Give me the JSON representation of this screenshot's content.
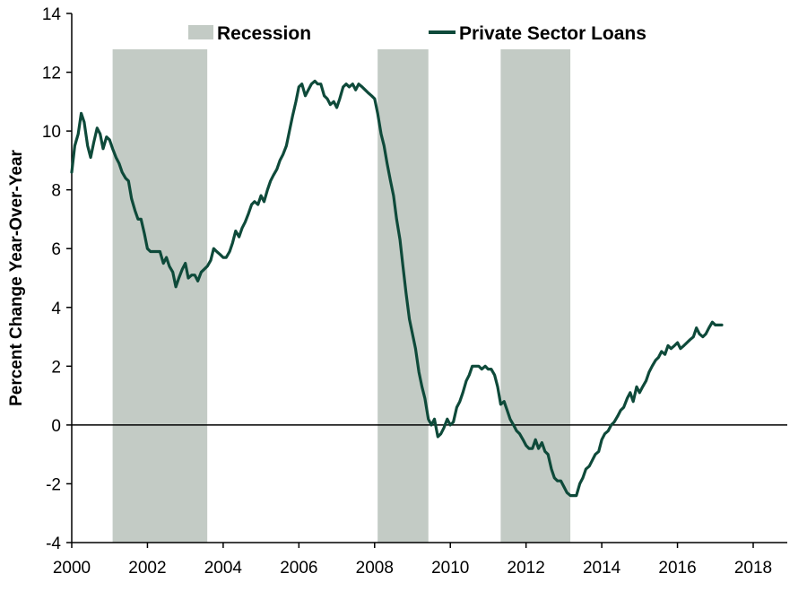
{
  "chart_data": {
    "type": "line",
    "title": "",
    "xlabel": "",
    "ylabel": "Percent Change Year-Over-Year",
    "xlim": [
      2000,
      2018.9
    ],
    "ylim": [
      -4,
      14
    ],
    "grid": false,
    "legend_position": "top",
    "x_ticks": [
      2000,
      2002,
      2004,
      2006,
      2008,
      2010,
      2012,
      2014,
      2016,
      2018
    ],
    "x_tick_labels": [
      "2000",
      "2002",
      "2004",
      "2006",
      "2008",
      "2010",
      "2012",
      "2014",
      "2016",
      "2018"
    ],
    "y_ticks": [
      -4,
      -2,
      0,
      2,
      4,
      6,
      8,
      10,
      12,
      14
    ],
    "y_tick_labels": [
      "-4",
      "-2",
      "0",
      "2",
      "4",
      "6",
      "8",
      "10",
      "12",
      "14"
    ],
    "legend": {
      "recession_label": "Recession",
      "series_label": "Private Sector Loans"
    },
    "colors": {
      "line": "#0e4a3a",
      "recession": "#c3cbc5",
      "axis": "#000000"
    },
    "recessions": [
      {
        "start": 2001.08,
        "end": 2003.58
      },
      {
        "start": 2008.08,
        "end": 2009.42
      },
      {
        "start": 2011.33,
        "end": 2013.17
      }
    ],
    "series": [
      {
        "name": "Private Sector Loans",
        "points": [
          [
            2000.0,
            8.6
          ],
          [
            2000.08,
            9.5
          ],
          [
            2000.17,
            9.9
          ],
          [
            2000.25,
            10.6
          ],
          [
            2000.33,
            10.3
          ],
          [
            2000.42,
            9.5
          ],
          [
            2000.5,
            9.1
          ],
          [
            2000.58,
            9.6
          ],
          [
            2000.67,
            10.1
          ],
          [
            2000.75,
            9.9
          ],
          [
            2000.83,
            9.4
          ],
          [
            2000.92,
            9.8
          ],
          [
            2001.0,
            9.7
          ],
          [
            2001.08,
            9.4
          ],
          [
            2001.17,
            9.1
          ],
          [
            2001.25,
            8.9
          ],
          [
            2001.33,
            8.6
          ],
          [
            2001.42,
            8.4
          ],
          [
            2001.5,
            8.3
          ],
          [
            2001.58,
            7.7
          ],
          [
            2001.67,
            7.3
          ],
          [
            2001.75,
            7.0
          ],
          [
            2001.83,
            7.0
          ],
          [
            2001.92,
            6.5
          ],
          [
            2002.0,
            6.0
          ],
          [
            2002.08,
            5.9
          ],
          [
            2002.17,
            5.9
          ],
          [
            2002.25,
            5.9
          ],
          [
            2002.33,
            5.9
          ],
          [
            2002.42,
            5.5
          ],
          [
            2002.5,
            5.7
          ],
          [
            2002.58,
            5.4
          ],
          [
            2002.67,
            5.2
          ],
          [
            2002.75,
            4.7
          ],
          [
            2002.83,
            5.0
          ],
          [
            2002.92,
            5.3
          ],
          [
            2003.0,
            5.5
          ],
          [
            2003.08,
            5.0
          ],
          [
            2003.17,
            5.1
          ],
          [
            2003.25,
            5.1
          ],
          [
            2003.33,
            4.9
          ],
          [
            2003.42,
            5.2
          ],
          [
            2003.5,
            5.3
          ],
          [
            2003.58,
            5.4
          ],
          [
            2003.67,
            5.6
          ],
          [
            2003.75,
            6.0
          ],
          [
            2003.83,
            5.9
          ],
          [
            2003.92,
            5.8
          ],
          [
            2004.0,
            5.7
          ],
          [
            2004.08,
            5.7
          ],
          [
            2004.17,
            5.9
          ],
          [
            2004.25,
            6.2
          ],
          [
            2004.33,
            6.6
          ],
          [
            2004.42,
            6.4
          ],
          [
            2004.5,
            6.7
          ],
          [
            2004.58,
            6.9
          ],
          [
            2004.67,
            7.2
          ],
          [
            2004.75,
            7.5
          ],
          [
            2004.83,
            7.6
          ],
          [
            2004.92,
            7.5
          ],
          [
            2005.0,
            7.8
          ],
          [
            2005.08,
            7.6
          ],
          [
            2005.17,
            8.0
          ],
          [
            2005.25,
            8.3
          ],
          [
            2005.33,
            8.5
          ],
          [
            2005.42,
            8.7
          ],
          [
            2005.5,
            9.0
          ],
          [
            2005.58,
            9.2
          ],
          [
            2005.67,
            9.5
          ],
          [
            2005.75,
            10.0
          ],
          [
            2005.83,
            10.5
          ],
          [
            2005.92,
            11.0
          ],
          [
            2006.0,
            11.5
          ],
          [
            2006.08,
            11.6
          ],
          [
            2006.17,
            11.2
          ],
          [
            2006.25,
            11.4
          ],
          [
            2006.33,
            11.6
          ],
          [
            2006.42,
            11.7
          ],
          [
            2006.5,
            11.6
          ],
          [
            2006.58,
            11.6
          ],
          [
            2006.67,
            11.2
          ],
          [
            2006.75,
            11.1
          ],
          [
            2006.83,
            10.9
          ],
          [
            2006.92,
            11.0
          ],
          [
            2007.0,
            10.8
          ],
          [
            2007.08,
            11.1
          ],
          [
            2007.17,
            11.5
          ],
          [
            2007.25,
            11.6
          ],
          [
            2007.33,
            11.5
          ],
          [
            2007.42,
            11.6
          ],
          [
            2007.5,
            11.4
          ],
          [
            2007.58,
            11.6
          ],
          [
            2007.67,
            11.5
          ],
          [
            2007.75,
            11.4
          ],
          [
            2007.83,
            11.3
          ],
          [
            2007.92,
            11.2
          ],
          [
            2008.0,
            11.1
          ],
          [
            2008.08,
            10.6
          ],
          [
            2008.17,
            9.9
          ],
          [
            2008.25,
            9.5
          ],
          [
            2008.33,
            8.9
          ],
          [
            2008.42,
            8.3
          ],
          [
            2008.5,
            7.8
          ],
          [
            2008.58,
            7.0
          ],
          [
            2008.67,
            6.3
          ],
          [
            2008.75,
            5.4
          ],
          [
            2008.83,
            4.5
          ],
          [
            2008.92,
            3.6
          ],
          [
            2009.0,
            3.1
          ],
          [
            2009.08,
            2.6
          ],
          [
            2009.17,
            1.8
          ],
          [
            2009.25,
            1.3
          ],
          [
            2009.33,
            0.9
          ],
          [
            2009.42,
            0.2
          ],
          [
            2009.5,
            0.0
          ],
          [
            2009.58,
            0.2
          ],
          [
            2009.67,
            -0.4
          ],
          [
            2009.75,
            -0.3
          ],
          [
            2009.83,
            -0.1
          ],
          [
            2009.92,
            0.2
          ],
          [
            2010.0,
            0.0
          ],
          [
            2010.08,
            0.1
          ],
          [
            2010.17,
            0.6
          ],
          [
            2010.25,
            0.8
          ],
          [
            2010.33,
            1.1
          ],
          [
            2010.42,
            1.5
          ],
          [
            2010.5,
            1.7
          ],
          [
            2010.58,
            2.0
          ],
          [
            2010.67,
            2.0
          ],
          [
            2010.75,
            2.0
          ],
          [
            2010.83,
            1.9
          ],
          [
            2010.92,
            2.0
          ],
          [
            2011.0,
            1.9
          ],
          [
            2011.08,
            1.9
          ],
          [
            2011.17,
            1.7
          ],
          [
            2011.25,
            1.3
          ],
          [
            2011.33,
            0.7
          ],
          [
            2011.42,
            0.8
          ],
          [
            2011.5,
            0.5
          ],
          [
            2011.58,
            0.2
          ],
          [
            2011.67,
            0.0
          ],
          [
            2011.75,
            -0.2
          ],
          [
            2011.83,
            -0.3
          ],
          [
            2011.92,
            -0.5
          ],
          [
            2012.0,
            -0.7
          ],
          [
            2012.08,
            -0.8
          ],
          [
            2012.17,
            -0.8
          ],
          [
            2012.25,
            -0.5
          ],
          [
            2012.33,
            -0.8
          ],
          [
            2012.42,
            -0.6
          ],
          [
            2012.5,
            -0.9
          ],
          [
            2012.58,
            -1.0
          ],
          [
            2012.67,
            -1.5
          ],
          [
            2012.75,
            -1.8
          ],
          [
            2012.83,
            -1.9
          ],
          [
            2012.92,
            -1.9
          ],
          [
            2013.0,
            -2.1
          ],
          [
            2013.08,
            -2.3
          ],
          [
            2013.17,
            -2.4
          ],
          [
            2013.25,
            -2.4
          ],
          [
            2013.33,
            -2.4
          ],
          [
            2013.42,
            -2.0
          ],
          [
            2013.5,
            -1.8
          ],
          [
            2013.58,
            -1.5
          ],
          [
            2013.67,
            -1.4
          ],
          [
            2013.75,
            -1.2
          ],
          [
            2013.83,
            -1.0
          ],
          [
            2013.92,
            -0.9
          ],
          [
            2014.0,
            -0.5
          ],
          [
            2014.08,
            -0.3
          ],
          [
            2014.17,
            -0.2
          ],
          [
            2014.25,
            0.0
          ],
          [
            2014.33,
            0.1
          ],
          [
            2014.42,
            0.3
          ],
          [
            2014.5,
            0.5
          ],
          [
            2014.58,
            0.6
          ],
          [
            2014.67,
            0.9
          ],
          [
            2014.75,
            1.1
          ],
          [
            2014.83,
            0.8
          ],
          [
            2014.92,
            1.3
          ],
          [
            2015.0,
            1.1
          ],
          [
            2015.08,
            1.3
          ],
          [
            2015.17,
            1.5
          ],
          [
            2015.25,
            1.8
          ],
          [
            2015.33,
            2.0
          ],
          [
            2015.42,
            2.2
          ],
          [
            2015.5,
            2.3
          ],
          [
            2015.58,
            2.5
          ],
          [
            2015.67,
            2.4
          ],
          [
            2015.75,
            2.7
          ],
          [
            2015.83,
            2.6
          ],
          [
            2015.92,
            2.7
          ],
          [
            2016.0,
            2.8
          ],
          [
            2016.08,
            2.6
          ],
          [
            2016.17,
            2.7
          ],
          [
            2016.25,
            2.8
          ],
          [
            2016.33,
            2.9
          ],
          [
            2016.42,
            3.0
          ],
          [
            2016.5,
            3.3
          ],
          [
            2016.58,
            3.1
          ],
          [
            2016.67,
            3.0
          ],
          [
            2016.75,
            3.1
          ],
          [
            2016.83,
            3.3
          ],
          [
            2016.92,
            3.5
          ],
          [
            2017.0,
            3.4
          ],
          [
            2017.08,
            3.4
          ],
          [
            2017.17,
            3.4
          ]
        ]
      }
    ]
  }
}
